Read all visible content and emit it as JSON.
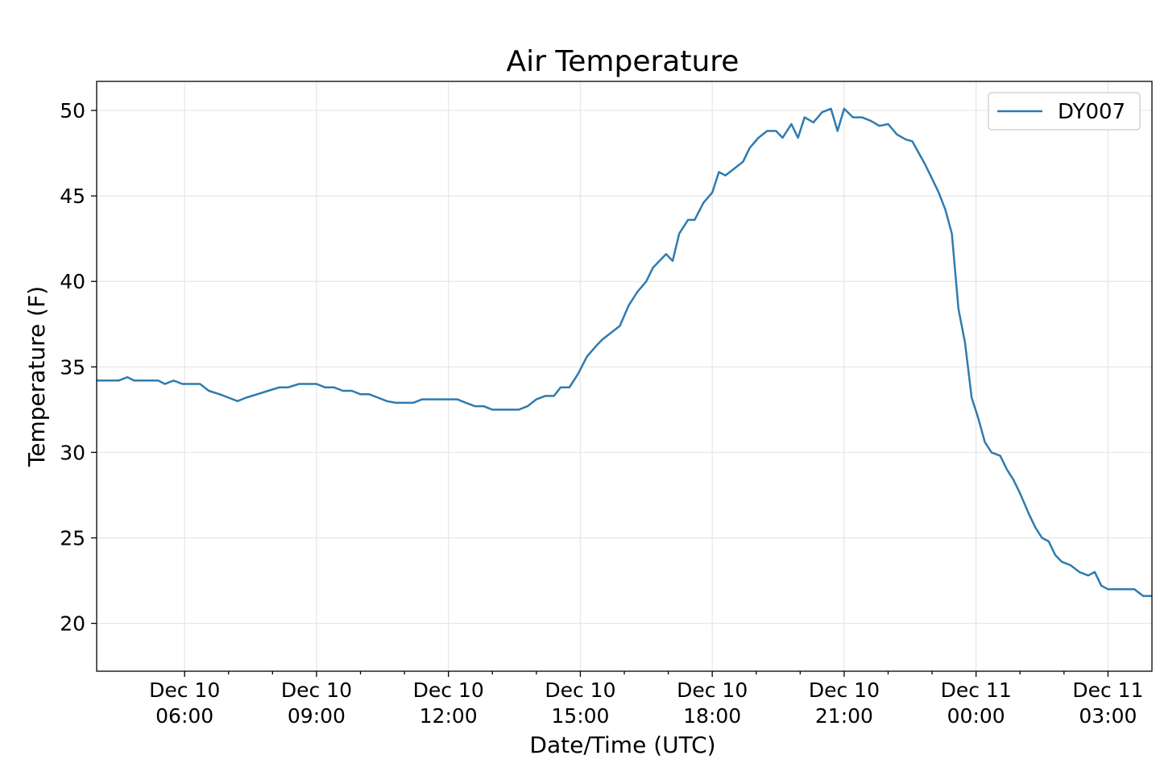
{
  "chart_data": {
    "type": "line",
    "title": "Air Temperature",
    "xlabel": "Date/Time (UTC)",
    "ylabel": "Temperature (F)",
    "x_unit": "hours since Dec 10 00:00 UTC",
    "xlim": [
      4.0,
      28.0
    ],
    "ylim": [
      17.2,
      51.7
    ],
    "grid": true,
    "legend_position": "top-right",
    "yticks": [
      20,
      25,
      30,
      35,
      40,
      45,
      50
    ],
    "xticks": [
      {
        "x": 6,
        "line1": "Dec 10",
        "line2": "06:00"
      },
      {
        "x": 9,
        "line1": "Dec 10",
        "line2": "09:00"
      },
      {
        "x": 12,
        "line1": "Dec 10",
        "line2": "12:00"
      },
      {
        "x": 15,
        "line1": "Dec 10",
        "line2": "15:00"
      },
      {
        "x": 18,
        "line1": "Dec 10",
        "line2": "18:00"
      },
      {
        "x": 21,
        "line1": "Dec 10",
        "line2": "21:00"
      },
      {
        "x": 24,
        "line1": "Dec 11",
        "line2": "00:00"
      },
      {
        "x": 27,
        "line1": "Dec 11",
        "line2": "03:00"
      }
    ],
    "minor_xticks": [
      7,
      8,
      10,
      11,
      13,
      14,
      16,
      17,
      19,
      20,
      22,
      23,
      25,
      26
    ],
    "series": [
      {
        "name": "DY007",
        "color": "#2f7bb0",
        "points": [
          [
            4.0,
            34.2
          ],
          [
            4.3,
            34.2
          ],
          [
            4.5,
            34.2
          ],
          [
            4.7,
            34.4
          ],
          [
            4.85,
            34.2
          ],
          [
            5.0,
            34.2
          ],
          [
            5.2,
            34.2
          ],
          [
            5.4,
            34.2
          ],
          [
            5.55,
            34.0
          ],
          [
            5.75,
            34.2
          ],
          [
            5.95,
            34.0
          ],
          [
            6.15,
            34.0
          ],
          [
            6.35,
            34.0
          ],
          [
            6.55,
            33.6
          ],
          [
            6.8,
            33.4
          ],
          [
            7.0,
            33.2
          ],
          [
            7.2,
            33.0
          ],
          [
            7.4,
            33.2
          ],
          [
            7.65,
            33.4
          ],
          [
            7.9,
            33.6
          ],
          [
            8.15,
            33.8
          ],
          [
            8.35,
            33.8
          ],
          [
            8.6,
            34.0
          ],
          [
            8.8,
            34.0
          ],
          [
            9.0,
            34.0
          ],
          [
            9.2,
            33.8
          ],
          [
            9.4,
            33.8
          ],
          [
            9.6,
            33.6
          ],
          [
            9.8,
            33.6
          ],
          [
            10.0,
            33.4
          ],
          [
            10.2,
            33.4
          ],
          [
            10.4,
            33.2
          ],
          [
            10.6,
            33.0
          ],
          [
            10.8,
            32.9
          ],
          [
            11.0,
            32.9
          ],
          [
            11.2,
            32.9
          ],
          [
            11.4,
            33.1
          ],
          [
            11.6,
            33.1
          ],
          [
            11.8,
            33.1
          ],
          [
            12.0,
            33.1
          ],
          [
            12.2,
            33.1
          ],
          [
            12.4,
            32.9
          ],
          [
            12.6,
            32.7
          ],
          [
            12.8,
            32.7
          ],
          [
            13.0,
            32.5
          ],
          [
            13.2,
            32.5
          ],
          [
            13.4,
            32.5
          ],
          [
            13.6,
            32.5
          ],
          [
            13.8,
            32.7
          ],
          [
            14.0,
            33.1
          ],
          [
            14.2,
            33.3
          ],
          [
            14.4,
            33.3
          ],
          [
            14.55,
            33.8
          ],
          [
            14.75,
            33.8
          ],
          [
            14.95,
            34.6
          ],
          [
            15.15,
            35.6
          ],
          [
            15.35,
            36.2
          ],
          [
            15.5,
            36.6
          ],
          [
            15.7,
            37.0
          ],
          [
            15.9,
            37.4
          ],
          [
            16.1,
            38.6
          ],
          [
            16.3,
            39.4
          ],
          [
            16.5,
            40.0
          ],
          [
            16.65,
            40.8
          ],
          [
            16.8,
            41.2
          ],
          [
            16.95,
            41.6
          ],
          [
            17.1,
            41.2
          ],
          [
            17.25,
            42.8
          ],
          [
            17.45,
            43.6
          ],
          [
            17.6,
            43.6
          ],
          [
            17.8,
            44.6
          ],
          [
            18.0,
            45.2
          ],
          [
            18.15,
            46.4
          ],
          [
            18.3,
            46.2
          ],
          [
            18.5,
            46.6
          ],
          [
            18.7,
            47.0
          ],
          [
            18.85,
            47.8
          ],
          [
            19.05,
            48.4
          ],
          [
            19.25,
            48.8
          ],
          [
            19.45,
            48.8
          ],
          [
            19.6,
            48.4
          ],
          [
            19.8,
            49.2
          ],
          [
            19.95,
            48.4
          ],
          [
            20.1,
            49.6
          ],
          [
            20.3,
            49.3
          ],
          [
            20.5,
            49.9
          ],
          [
            20.7,
            50.1
          ],
          [
            20.85,
            48.8
          ],
          [
            21.0,
            50.1
          ],
          [
            21.2,
            49.6
          ],
          [
            21.4,
            49.6
          ],
          [
            21.6,
            49.4
          ],
          [
            21.8,
            49.1
          ],
          [
            22.0,
            49.2
          ],
          [
            22.2,
            48.6
          ],
          [
            22.4,
            48.3
          ],
          [
            22.55,
            48.2
          ],
          [
            22.7,
            47.5
          ],
          [
            22.85,
            46.8
          ],
          [
            23.0,
            46.0
          ],
          [
            23.15,
            45.2
          ],
          [
            23.3,
            44.2
          ],
          [
            23.45,
            42.8
          ],
          [
            23.6,
            38.4
          ],
          [
            23.75,
            36.4
          ],
          [
            23.9,
            33.2
          ],
          [
            24.05,
            32.0
          ],
          [
            24.2,
            30.6
          ],
          [
            24.35,
            30.0
          ],
          [
            24.55,
            29.8
          ],
          [
            24.7,
            29.0
          ],
          [
            24.85,
            28.4
          ],
          [
            25.0,
            27.6
          ],
          [
            25.2,
            26.4
          ],
          [
            25.35,
            25.6
          ],
          [
            25.5,
            25.0
          ],
          [
            25.65,
            24.8
          ],
          [
            25.8,
            24.0
          ],
          [
            25.95,
            23.6
          ],
          [
            26.15,
            23.4
          ],
          [
            26.35,
            23.0
          ],
          [
            26.55,
            22.8
          ],
          [
            26.7,
            23.0
          ],
          [
            26.85,
            22.2
          ],
          [
            27.0,
            22.0
          ],
          [
            27.2,
            22.0
          ],
          [
            27.4,
            22.0
          ],
          [
            27.6,
            22.0
          ],
          [
            27.8,
            21.6
          ],
          [
            28.0,
            21.6
          ]
        ]
      }
    ]
  }
}
